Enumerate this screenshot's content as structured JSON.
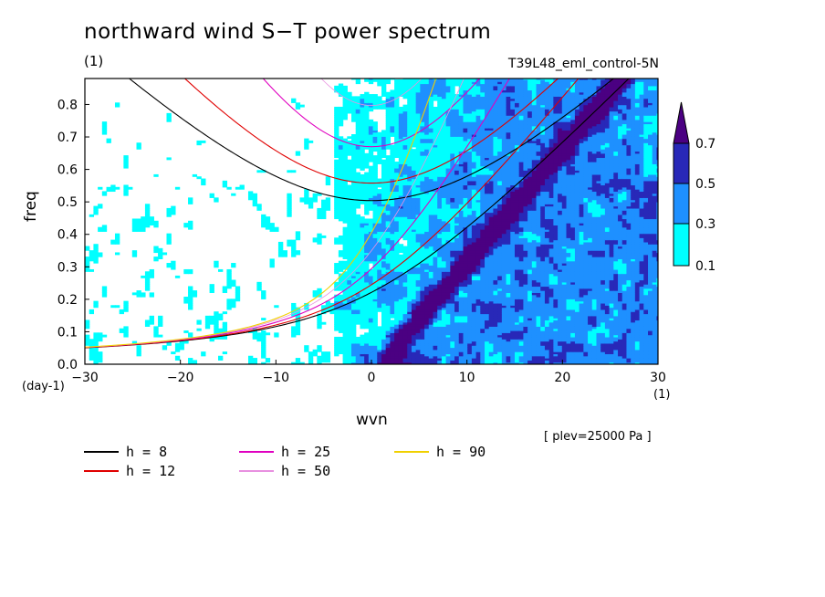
{
  "title": "northward wind S−T power spectrum",
  "subtitle_left": "(1)",
  "subtitle_right": "T39L48_eml_control-5N",
  "note": "[ plev=25000 Pa ]",
  "colors": {
    "levels": [
      "#00ffff",
      "#1e90ff",
      "#2828b8",
      "#4b0082"
    ],
    "curves": {
      "h8": "#000000",
      "h12": "#e00000",
      "h25": "#e000c0",
      "h50": "#e890e0",
      "h90": "#f0d000"
    }
  },
  "chart_data": {
    "type": "heatmap",
    "title": "northward wind S−T power spectrum",
    "xlabel": "wvn",
    "ylabel": "freq",
    "x_unit": "(1)",
    "y_unit": "(day-1)",
    "xlim": [
      -30,
      30
    ],
    "ylim": [
      0,
      0.88
    ],
    "x_ticks": [
      "-30",
      "-20",
      "-10",
      "0",
      "10",
      "20",
      "30"
    ],
    "y_ticks": [
      "0.0",
      "0.1",
      "0.2",
      "0.3",
      "0.4",
      "0.5",
      "0.6",
      "0.7",
      "0.8"
    ],
    "colorbar": {
      "levels": [
        "0.1",
        "0.3",
        "0.5",
        "0.7"
      ]
    },
    "dispersion_curves": [
      {
        "name": "h =  8",
        "key": "h8"
      },
      {
        "name": "h = 12",
        "key": "h12"
      },
      {
        "name": "h = 25",
        "key": "h25"
      },
      {
        "name": "h = 50",
        "key": "h50"
      },
      {
        "name": "h = 90",
        "key": "h90"
      }
    ]
  }
}
